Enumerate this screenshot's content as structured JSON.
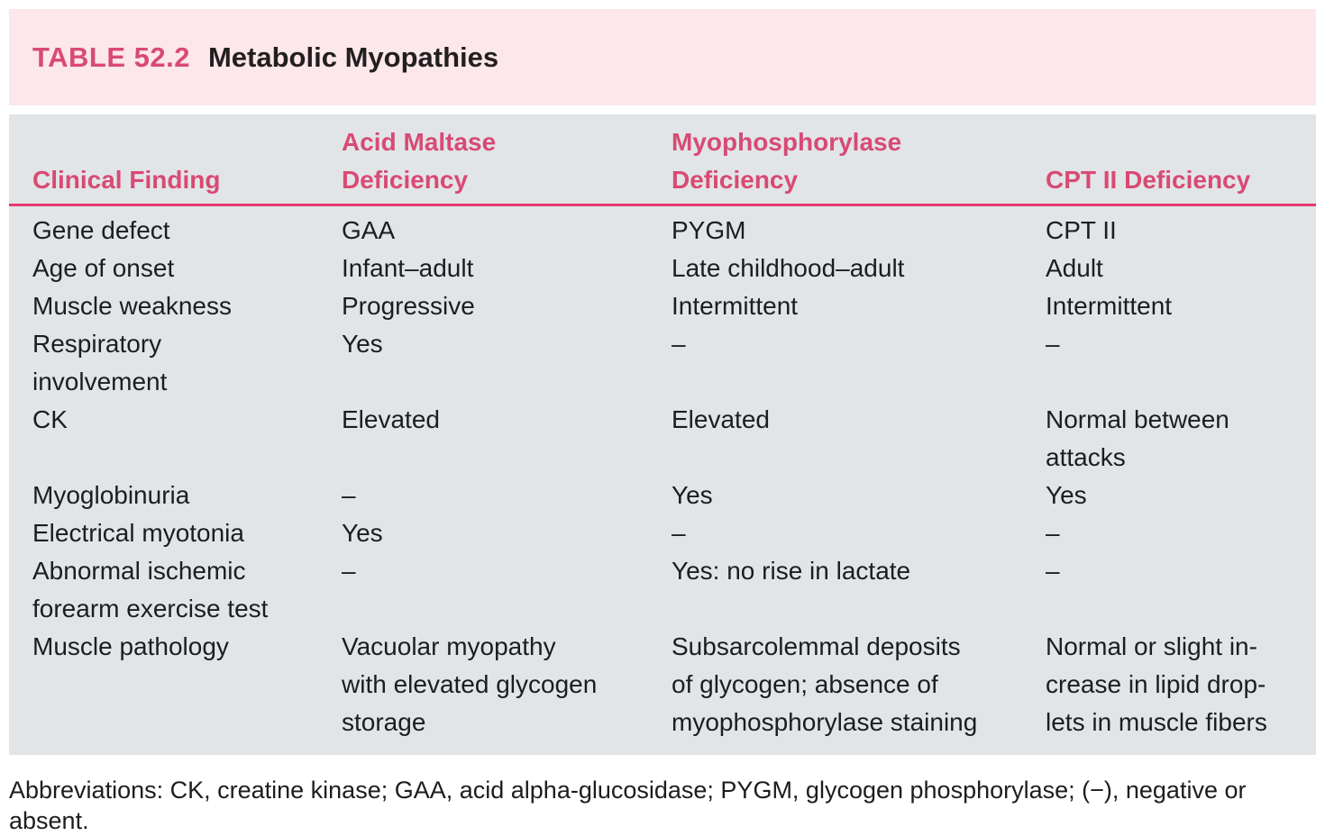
{
  "header": {
    "label": "TABLE 52.2",
    "title": "Metabolic Myopathies"
  },
  "table": {
    "columns": [
      "Clinical Finding",
      "Acid Maltase\nDeficiency",
      "Myophosphorylase\nDeficiency",
      "CPT II Deficiency"
    ],
    "rows": [
      [
        "Gene defect",
        "GAA",
        "PYGM",
        "CPT II"
      ],
      [
        "Age of onset",
        "Infant–adult",
        "Late childhood–adult",
        "Adult"
      ],
      [
        "Muscle weakness",
        "Progressive",
        "Intermittent",
        "Intermittent"
      ],
      [
        "Respiratory\ninvolvement",
        "Yes",
        "–",
        "–"
      ],
      [
        "CK",
        "Elevated",
        "Elevated",
        "Normal between\nattacks"
      ],
      [
        "Myoglobinuria",
        "–",
        "Yes",
        "Yes"
      ],
      [
        "Electrical myotonia",
        "Yes",
        "–",
        "–"
      ],
      [
        "Abnormal ischemic\nforearm exercise test",
        "–",
        "Yes: no rise in lactate",
        "–"
      ],
      [
        "Muscle pathology",
        "Vacuolar myopathy\nwith elevated glycogen\nstorage",
        "Subsarcolemmal deposits\nof glycogen; absence of\nmyophosphorylase staining",
        "Normal or slight in-\ncrease in lipid drop-\nlets in muscle fibers"
      ]
    ]
  },
  "footnote": "Abbreviations: CK, creatine kinase; GAA, acid alpha-glucosidase; PYGM, glycogen phosphorylase; (−), negative or absent.",
  "colors": {
    "accent_pink_text": "#d84a74",
    "title_band_pink": "#fce7ea",
    "rule_pink": "#e5386f",
    "table_band_gray": "#e2e5e7",
    "body_text": "#1d1d1f"
  }
}
